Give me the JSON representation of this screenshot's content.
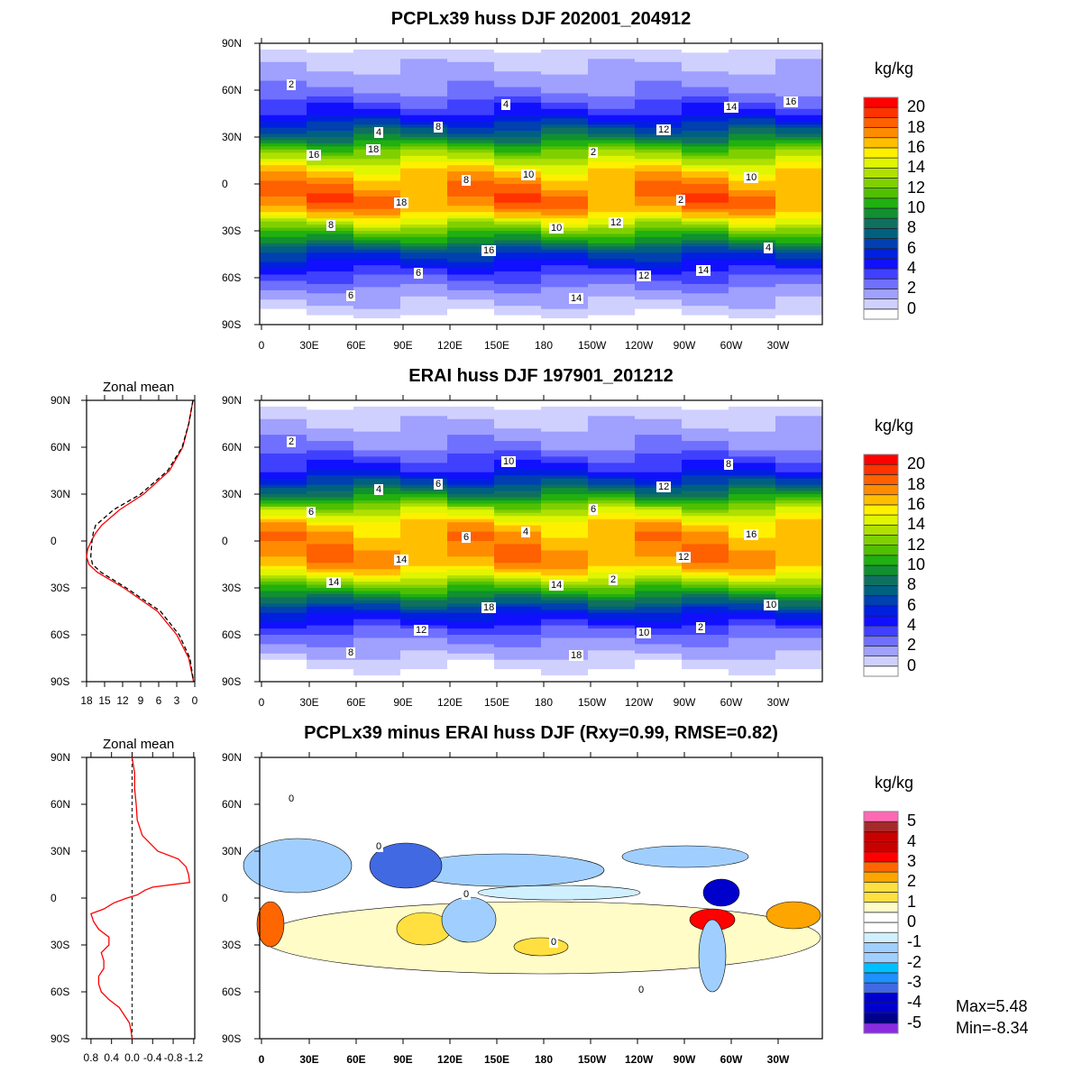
{
  "chart_data": [
    {
      "type": "heatmap",
      "title": "PCPLx39 huss DJF 202001_204912",
      "units": "kg/kg",
      "xticks": [
        "0",
        "30E",
        "60E",
        "90E",
        "120E",
        "150E",
        "180",
        "150W",
        "120W",
        "90W",
        "60W",
        "30W"
      ],
      "yticks": [
        "90N",
        "60N",
        "30N",
        "0",
        "30S",
        "60S",
        "90S"
      ],
      "colorbar_labels": [
        "20",
        "18",
        "16",
        "14",
        "12",
        "10",
        "8",
        "6",
        "4",
        "2",
        "0"
      ],
      "contour_labels": [
        "2",
        "4",
        "8",
        "10",
        "12",
        "14",
        "16",
        "18",
        "16",
        "14",
        "12",
        "10",
        "8",
        "6",
        "4",
        "2",
        "2",
        "4",
        "6",
        "8",
        "10",
        "12",
        "14",
        "16",
        "18"
      ]
    },
    {
      "type": "heatmap",
      "title": "ERAI huss DJF 197901_201212",
      "units": "kg/kg",
      "xticks": [
        "0",
        "30E",
        "60E",
        "90E",
        "120E",
        "150E",
        "180",
        "150W",
        "120W",
        "90W",
        "60W",
        "30W"
      ],
      "yticks": [
        "90N",
        "60N",
        "30N",
        "0",
        "30S",
        "60S",
        "90S"
      ],
      "colorbar_labels": [
        "20",
        "18",
        "16",
        "14",
        "12",
        "10",
        "8",
        "6",
        "4",
        "2",
        "0"
      ],
      "contour_labels": [
        "2",
        "4",
        "6",
        "14",
        "10",
        "8",
        "6",
        "14",
        "18",
        "18",
        "12",
        "16",
        "14",
        "12",
        "10",
        "6",
        "12",
        "10",
        "8",
        "6",
        "4",
        "2",
        "2"
      ]
    },
    {
      "type": "heatmap",
      "title": "PCPLx39 minus ERAI huss DJF (Rxy=0.99, RMSE=0.82)",
      "units": "kg/kg",
      "xticks": [
        "0",
        "30E",
        "60E",
        "90E",
        "120E",
        "150E",
        "180",
        "150W",
        "120W",
        "90W",
        "60W",
        "30W"
      ],
      "yticks": [
        "90N",
        "60N",
        "30N",
        "0",
        "30S",
        "60S",
        "90S"
      ],
      "colorbar_labels": [
        "5",
        "4",
        "3",
        "2",
        "1",
        "0",
        "-1",
        "-2",
        "-3",
        "-4",
        "-5"
      ],
      "contour_labels": [
        "0",
        "0",
        "0",
        "0",
        "0"
      ],
      "max_text": "Max=5.48",
      "min_text": "Min=-8.34"
    },
    {
      "type": "line",
      "title": "Zonal mean",
      "yticks": [
        "90N",
        "60N",
        "30N",
        "0",
        "30S",
        "60S",
        "90S"
      ],
      "xticks": [
        "18",
        "15",
        "12",
        "9",
        "6",
        "3",
        "0"
      ],
      "xlim": [
        18,
        0
      ],
      "lat": [
        90,
        75,
        60,
        45,
        30,
        20,
        10,
        5,
        0,
        -5,
        -10,
        -15,
        -20,
        -30,
        -45,
        -60,
        -75,
        -90
      ],
      "series": [
        {
          "name": "PCPLx39",
          "color": "#ff0000",
          "values": [
            0.3,
            1.0,
            2.0,
            4.2,
            8.5,
            12.5,
            15.5,
            16.5,
            17.2,
            17.8,
            18.0,
            17.6,
            16.2,
            11.8,
            6.2,
            3.0,
            1.0,
            0.2
          ]
        },
        {
          "name": "ERAI",
          "color": "#000000",
          "values": [
            0.3,
            1.0,
            2.1,
            4.5,
            9.0,
            13.5,
            16.5,
            16.9,
            17.1,
            17.2,
            17.3,
            17.0,
            15.6,
            11.4,
            5.7,
            2.6,
            0.8,
            0.2
          ]
        }
      ]
    },
    {
      "type": "line",
      "title": "Zonal mean",
      "yticks": [
        "90N",
        "60N",
        "30N",
        "0",
        "30S",
        "60S",
        "90S"
      ],
      "xticks": [
        "0.8",
        "0.4",
        "0.0",
        "-0.4",
        "-0.8",
        "-1.2"
      ],
      "xlim": [
        0.886,
        -1.22
      ],
      "lat": [
        90,
        80,
        70,
        60,
        50,
        40,
        30,
        25,
        20,
        15,
        10,
        7,
        5,
        2,
        0,
        -3,
        -7,
        -10,
        -15,
        -20,
        -25,
        -30,
        -35,
        -40,
        -45,
        -50,
        -55,
        -60,
        -65,
        -70,
        -75,
        -80,
        -85,
        -90
      ],
      "series": [
        {
          "name": "difference",
          "color": "#ff0000",
          "values": [
            0.0,
            -0.05,
            -0.05,
            -0.08,
            -0.1,
            -0.2,
            -0.5,
            -0.9,
            -1.05,
            -1.1,
            -1.12,
            -0.4,
            -0.25,
            -0.1,
            0.1,
            0.35,
            0.55,
            0.8,
            0.75,
            0.65,
            0.45,
            0.45,
            0.6,
            0.55,
            0.55,
            0.65,
            0.65,
            0.6,
            0.45,
            0.25,
            0.15,
            0.05,
            0.02,
            0.0
          ]
        }
      ]
    }
  ]
}
